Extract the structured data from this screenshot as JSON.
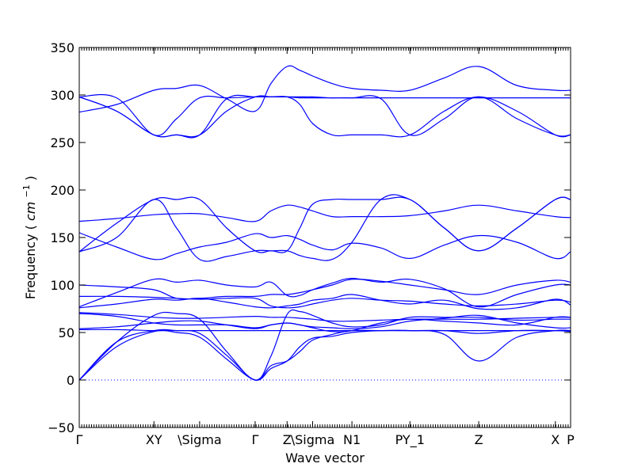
{
  "chart_data": {
    "type": "line",
    "title": "",
    "xlabel": "Wave vector",
    "ylabel": "Frequency",
    "ylabel_unit_text": "cm",
    "ylabel_unit_exp": "−1",
    "ylim": [
      -50,
      350
    ],
    "yticks": [
      -50,
      0,
      50,
      100,
      150,
      200,
      250,
      300,
      350
    ],
    "xlim": [
      0,
      1
    ],
    "xticks": [
      {
        "label": "Γ",
        "x": 0.0
      },
      {
        "label": "XY",
        "x": 0.152
      },
      {
        "label": "\\Sigma",
        "x": 0.245
      },
      {
        "label": "Γ",
        "x": 0.358
      },
      {
        "label": "Z",
        "x": 0.423
      },
      {
        "label": "\\Sigma",
        "x": 0.475
      },
      {
        "label": "N1",
        "x": 0.555
      },
      {
        "label": "PY_1",
        "x": 0.673
      },
      {
        "label": "Z",
        "x": 0.813
      },
      {
        "label": "X",
        "x": 0.969
      },
      {
        "label": "P",
        "x": 1.0
      }
    ],
    "zero_line": 0,
    "series": [
      {
        "x": [
          0,
          0.076,
          0.152,
          0.198,
          0.245,
          0.3,
          0.358,
          0.39,
          0.423,
          0.449,
          0.475,
          0.515,
          0.555,
          0.614,
          0.673,
          0.743,
          0.813,
          0.891,
          0.969,
          1.0
        ],
        "values": [
          282,
          290,
          305,
          307,
          310,
          296,
          283,
          312,
          330,
          326,
          320,
          312,
          307,
          305,
          305,
          318,
          330,
          310,
          305,
          305
        ]
      },
      {
        "x": [
          0,
          0.076,
          0.152,
          0.198,
          0.245,
          0.3,
          0.358,
          0.39,
          0.423,
          0.449,
          0.475,
          0.515,
          0.555,
          0.614,
          0.673,
          0.743,
          0.813,
          0.891,
          0.969,
          1.0
        ],
        "values": [
          298,
          283,
          258,
          258,
          258,
          296,
          298,
          298,
          298,
          298,
          298,
          297,
          297,
          297,
          297,
          297,
          297,
          297,
          297,
          297
        ]
      },
      {
        "x": [
          0,
          0.076,
          0.152,
          0.198,
          0.245,
          0.3,
          0.358,
          0.39,
          0.423,
          0.449,
          0.475,
          0.515,
          0.555,
          0.614,
          0.673,
          0.743,
          0.813,
          0.891,
          0.969,
          1.0
        ],
        "values": [
          298,
          283,
          258,
          258,
          258,
          283,
          298,
          298,
          298,
          290,
          270,
          258,
          258,
          258,
          258,
          283,
          298,
          283,
          258,
          258
        ]
      },
      {
        "x": [
          0,
          0.076,
          0.152,
          0.198,
          0.245,
          0.3,
          0.358,
          0.39,
          0.423,
          0.449,
          0.475,
          0.515,
          0.555,
          0.614,
          0.673,
          0.743,
          0.813,
          0.891,
          0.969,
          1.0
        ],
        "values": [
          298,
          297,
          258,
          275,
          297,
          297,
          298,
          298,
          298,
          297,
          297,
          297,
          297,
          296,
          258,
          275,
          298,
          275,
          258,
          258
        ]
      },
      {
        "x": [
          0,
          0.076,
          0.152,
          0.198,
          0.245,
          0.3,
          0.358,
          0.39,
          0.423,
          0.449,
          0.475,
          0.515,
          0.555,
          0.614,
          0.673,
          0.743,
          0.813,
          0.891,
          0.969,
          1.0
        ],
        "values": [
          167,
          170,
          174,
          175,
          175,
          171,
          167,
          178,
          184,
          182,
          178,
          172,
          172,
          172,
          173,
          178,
          184,
          178,
          172,
          171
        ]
      },
      {
        "x": [
          0,
          0.076,
          0.152,
          0.198,
          0.245,
          0.3,
          0.358,
          0.39,
          0.423,
          0.449,
          0.475,
          0.515,
          0.555,
          0.614,
          0.673,
          0.743,
          0.813,
          0.891,
          0.969,
          1.0
        ],
        "values": [
          135,
          165,
          190,
          190,
          190,
          160,
          136,
          136,
          136,
          160,
          185,
          190,
          190,
          190,
          190,
          160,
          136,
          160,
          190,
          190
        ]
      },
      {
        "x": [
          0,
          0.076,
          0.152,
          0.198,
          0.245,
          0.3,
          0.358,
          0.39,
          0.423,
          0.449,
          0.475,
          0.515,
          0.555,
          0.614,
          0.673,
          0.743,
          0.813,
          0.891,
          0.969,
          1.0
        ],
        "values": [
          155,
          140,
          127,
          133,
          140,
          145,
          154,
          150,
          152,
          148,
          142,
          137,
          144,
          139,
          128,
          142,
          152,
          145,
          128,
          135
        ]
      },
      {
        "x": [
          0,
          0.076,
          0.152,
          0.198,
          0.245,
          0.3,
          0.358,
          0.39,
          0.423,
          0.449,
          0.475,
          0.515,
          0.555,
          0.614,
          0.673,
          0.743,
          0.813,
          0.891,
          0.969,
          1.0
        ],
        "values": [
          135,
          150,
          190,
          160,
          127,
          130,
          136,
          136,
          136,
          131,
          128,
          127,
          145,
          190,
          190,
          160,
          136,
          160,
          190,
          190
        ]
      },
      {
        "x": [
          0,
          0.076,
          0.152,
          0.198,
          0.245,
          0.3,
          0.358,
          0.39,
          0.423,
          0.449,
          0.475,
          0.515,
          0.555,
          0.614,
          0.673,
          0.743,
          0.813,
          0.891,
          0.969,
          1.0
        ],
        "values": [
          100,
          98,
          95,
          86,
          86,
          88,
          88,
          90,
          90,
          92,
          95,
          100,
          106,
          104,
          100,
          95,
          90,
          100,
          105,
          103
        ]
      },
      {
        "x": [
          0,
          0.076,
          0.152,
          0.198,
          0.245,
          0.3,
          0.358,
          0.39,
          0.423,
          0.449,
          0.475,
          0.515,
          0.555,
          0.614,
          0.673,
          0.743,
          0.813,
          0.891,
          0.969,
          1.0
        ],
        "values": [
          77,
          92,
          106,
          103,
          105,
          100,
          98,
          103,
          89,
          89,
          95,
          102,
          107,
          103,
          106,
          96,
          77,
          90,
          100,
          100
        ]
      },
      {
        "x": [
          0,
          0.076,
          0.152,
          0.198,
          0.245,
          0.3,
          0.358,
          0.39,
          0.423,
          0.449,
          0.475,
          0.515,
          0.555,
          0.614,
          0.673,
          0.743,
          0.813,
          0.891,
          0.969,
          1.0
        ],
        "values": [
          88,
          88,
          87,
          86,
          85,
          86,
          86,
          78,
          76,
          77,
          80,
          84,
          86,
          84,
          83,
          80,
          78,
          80,
          84,
          82
        ]
      },
      {
        "x": [
          0,
          0.076,
          0.152,
          0.198,
          0.245,
          0.3,
          0.358,
          0.39,
          0.423,
          0.449,
          0.475,
          0.515,
          0.555,
          0.614,
          0.673,
          0.743,
          0.813,
          0.891,
          0.969,
          1.0
        ],
        "values": [
          76,
          80,
          85,
          84,
          86,
          82,
          77,
          76,
          78,
          80,
          84,
          86,
          90,
          84,
          80,
          84,
          75,
          76,
          85,
          79
        ]
      },
      {
        "x": [
          0,
          0.076,
          0.152,
          0.198,
          0.245,
          0.3,
          0.358,
          0.39,
          0.423,
          0.449,
          0.475,
          0.515,
          0.555,
          0.614,
          0.673,
          0.743,
          0.813,
          0.891,
          0.969,
          1.0
        ],
        "values": [
          71,
          69,
          66,
          65,
          65,
          66,
          67,
          66,
          66,
          65,
          64,
          62,
          62,
          63,
          64,
          64,
          64,
          65,
          66,
          66
        ]
      },
      {
        "x": [
          0,
          0.076,
          0.152,
          0.198,
          0.245,
          0.3,
          0.358,
          0.39,
          0.423,
          0.449,
          0.475,
          0.515,
          0.555,
          0.614,
          0.673,
          0.743,
          0.813,
          0.891,
          0.969,
          1.0
        ],
        "values": [
          70,
          67,
          60,
          58,
          58,
          58,
          55,
          58,
          60,
          58,
          55,
          51,
          52,
          60,
          64,
          62,
          60,
          58,
          66,
          66
        ]
      },
      {
        "x": [
          0,
          0.076,
          0.152,
          0.198,
          0.245,
          0.3,
          0.358,
          0.39,
          0.423,
          0.449,
          0.475,
          0.515,
          0.555,
          0.614,
          0.673,
          0.743,
          0.813,
          0.891,
          0.969,
          1.0
        ],
        "values": [
          54,
          56,
          60,
          62,
          62,
          58,
          54,
          58,
          60,
          58,
          56,
          55,
          54,
          56,
          62,
          65,
          68,
          60,
          55,
          55
        ]
      },
      {
        "x": [
          0,
          0.076,
          0.152,
          0.198,
          0.245,
          0.3,
          0.358,
          0.39,
          0.423,
          0.449,
          0.475,
          0.515,
          0.555,
          0.614,
          0.673,
          0.743,
          0.813,
          0.891,
          0.969,
          1.0
        ],
        "values": [
          53,
          53,
          52,
          52,
          52,
          52,
          52,
          52,
          52,
          52,
          52,
          52,
          52,
          52,
          52,
          52,
          52,
          52,
          52,
          52
        ]
      },
      {
        "x": [
          0,
          0.076,
          0.152,
          0.198,
          0.245,
          0.3,
          0.358,
          0.39,
          0.423,
          0.449,
          0.475,
          0.515,
          0.555,
          0.614,
          0.673,
          0.743,
          0.813,
          0.891,
          0.969,
          1.0
        ],
        "values": [
          0,
          40,
          68,
          70,
          64,
          30,
          0,
          25,
          69,
          72,
          68,
          60,
          56,
          58,
          66,
          66,
          66,
          63,
          64,
          64
        ]
      },
      {
        "x": [
          0,
          0.076,
          0.152,
          0.198,
          0.245,
          0.3,
          0.358,
          0.39,
          0.423,
          0.449,
          0.475,
          0.515,
          0.555,
          0.614,
          0.673,
          0.743,
          0.813,
          0.891,
          0.969,
          1.0
        ],
        "values": [
          0,
          40,
          52,
          52,
          49,
          26,
          0,
          15,
          20,
          30,
          42,
          48,
          52,
          52,
          52,
          48,
          20,
          45,
          52,
          52
        ]
      },
      {
        "x": [
          0,
          0.076,
          0.152,
          0.198,
          0.245,
          0.3,
          0.358,
          0.39,
          0.423,
          0.449,
          0.475,
          0.515,
          0.555,
          0.614,
          0.673,
          0.743,
          0.813,
          0.891,
          0.969,
          1.0
        ],
        "values": [
          0,
          35,
          51,
          50,
          45,
          22,
          0,
          12,
          20,
          35,
          44,
          46,
          50,
          52,
          52,
          52,
          49,
          52,
          52,
          51
        ]
      }
    ]
  }
}
